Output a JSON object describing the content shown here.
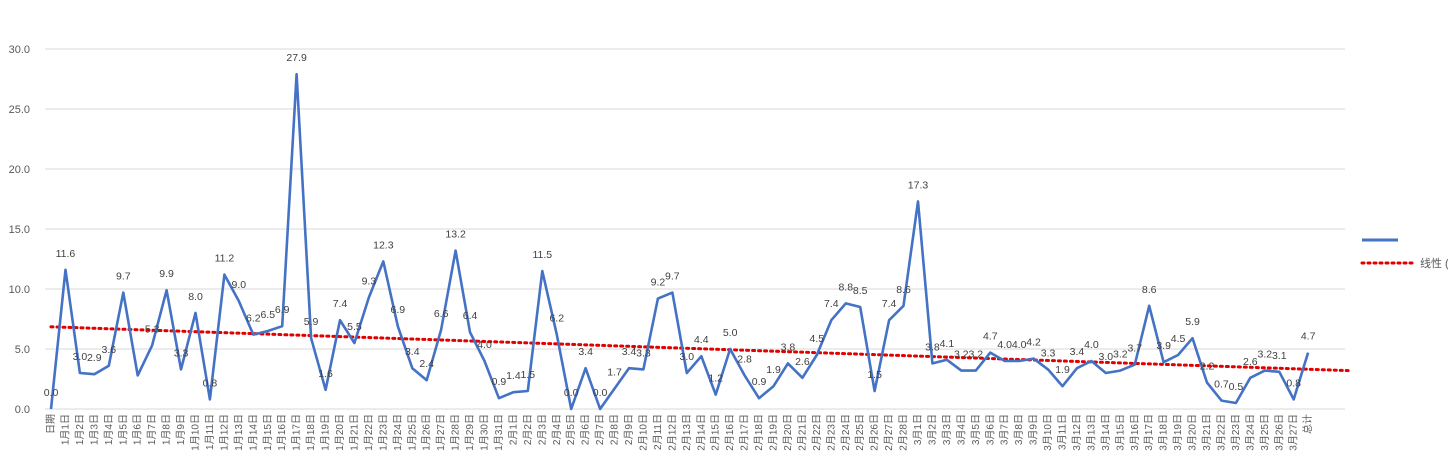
{
  "chart_data": {
    "type": "line",
    "title": "",
    "xlabel": "",
    "ylabel": "",
    "ylim": [
      0,
      30
    ],
    "yticks": [
      "0.0",
      "5.0",
      "10.0",
      "15.0",
      "20.0",
      "25.0",
      "30.0"
    ],
    "grid": true,
    "legend_position": "right",
    "categories": [
      "日期",
      "1月1日",
      "1月2日",
      "1月3日",
      "1月4日",
      "1月5日",
      "1月6日",
      "1月7日",
      "1月8日",
      "1月9日",
      "1月10日",
      "1月11日",
      "1月12日",
      "1月13日",
      "1月14日",
      "1月15日",
      "1月16日",
      "1月17日",
      "1月18日",
      "1月19日",
      "1月20日",
      "1月21日",
      "1月22日",
      "1月23日",
      "1月24日",
      "1月25日",
      "1月26日",
      "1月27日",
      "1月28日",
      "1月29日",
      "1月30日",
      "1月31日",
      "2月1日",
      "2月2日",
      "2月3日",
      "2月4日",
      "2月5日",
      "2月6日",
      "2月7日",
      "2月8日",
      "2月9日",
      "2月10日",
      "2月11日",
      "2月12日",
      "2月13日",
      "2月14日",
      "2月15日",
      "2月16日",
      "2月17日",
      "2月18日",
      "2月19日",
      "2月20日",
      "2月21日",
      "2月22日",
      "2月23日",
      "2月24日",
      "2月25日",
      "2月26日",
      "2月27日",
      "2月28日",
      "3月1日",
      "3月2日",
      "3月3日",
      "3月4日",
      "3月5日",
      "3月6日",
      "3月7日",
      "3月8日",
      "3月9日",
      "3月10日",
      "3月11日",
      "3月12日",
      "3月13日",
      "3月14日",
      "3月15日",
      "3月16日",
      "3月17日",
      "3月18日",
      "3月19日",
      "3月20日",
      "3月21日",
      "3月22日",
      "3月23日",
      "3月24日",
      "3月25日",
      "3月26日",
      "3月27日",
      "总计"
    ],
    "series": [
      {
        "name": "",
        "color": "#4472C4",
        "values": [
          0.0,
          11.6,
          3.0,
          2.9,
          3.6,
          9.7,
          2.8,
          5.3,
          9.9,
          3.3,
          8.0,
          0.8,
          11.2,
          9.0,
          6.2,
          6.5,
          6.9,
          27.9,
          5.9,
          1.6,
          7.4,
          5.5,
          9.3,
          12.3,
          6.9,
          3.4,
          2.4,
          6.6,
          13.2,
          6.4,
          4.0,
          0.9,
          1.4,
          1.5,
          11.5,
          6.2,
          0.0,
          3.4,
          0.0,
          1.7,
          3.4,
          3.3,
          9.2,
          9.7,
          3.0,
          4.4,
          1.2,
          5.0,
          2.8,
          0.9,
          1.9,
          3.8,
          2.6,
          4.5,
          7.4,
          8.8,
          8.5,
          1.5,
          7.4,
          8.6,
          17.3,
          3.8,
          4.1,
          3.2,
          3.2,
          4.7,
          4.0,
          4.0,
          4.2,
          3.3,
          1.9,
          3.4,
          4.0,
          3.0,
          3.2,
          3.7,
          8.6,
          3.9,
          4.5,
          5.9,
          2.2,
          0.7,
          0.5,
          2.6,
          3.2,
          3.1,
          0.8,
          4.7
        ],
        "data_labels": [
          "0.0",
          "11.6",
          "3.0",
          "2.9",
          "3.6",
          "9.7",
          "",
          "5.3",
          "9.9",
          "3.3",
          "8.0",
          "0.8",
          "11.2",
          "9.0",
          "6.2",
          "6.5",
          "6.9",
          "27.9",
          "5.9",
          "1.6",
          "7.4",
          "5.5",
          "9.3",
          "12.3",
          "6.9",
          "3.4",
          "2.4",
          "6.6",
          "13.2",
          "6.4",
          "4.0",
          "0.9",
          "1.4",
          "1.5",
          "11.5",
          "6.2",
          "0.0",
          "3.4",
          "0.0",
          "1.7",
          "3.4",
          "3.3",
          "9.2",
          "9.7",
          "3.0",
          "4.4",
          "1.2",
          "5.0",
          "2.8",
          "0.9",
          "1.9",
          "3.8",
          "2.6",
          "4.5",
          "7.4",
          "8.8",
          "8.5",
          "1.5",
          "7.4",
          "8.6",
          "17.3",
          "3.8",
          "4.1",
          "3.2",
          "3.2",
          "4.7",
          "4.0",
          "4.0",
          "4.2",
          "3.3",
          "1.9",
          "3.4",
          "4.0",
          "3.0",
          "3.2",
          "3.7",
          "8.6",
          "3.9",
          "4.5",
          "5.9",
          "2.2",
          "0.7",
          "0.5",
          "2.6",
          "3.2",
          "3.1",
          "0.8",
          "4.7"
        ]
      }
    ],
    "trendline": {
      "name": "线性 ()",
      "type": "linear",
      "color": "#E00000",
      "style": "dotted",
      "start": 6.85,
      "end": 3.2
    }
  }
}
